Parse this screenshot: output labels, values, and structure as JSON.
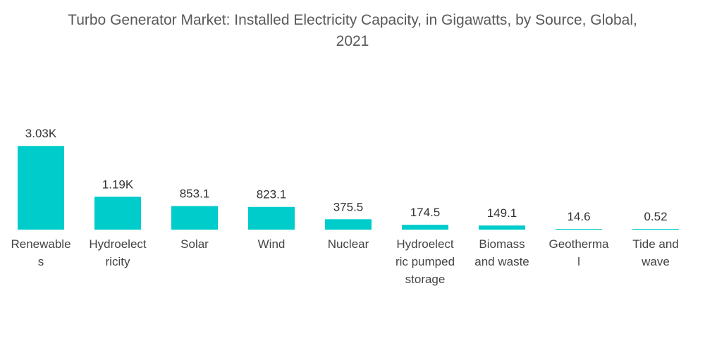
{
  "title": {
    "line1": "Turbo Generator Market: Installed Electricity Capacity, in Gigawatts, by Source, Global,",
    "line2": "2021"
  },
  "colors": {
    "bar": "#00cccc",
    "text": "#595959"
  },
  "chart_data": {
    "type": "bar",
    "title": "Turbo Generator Market: Installed Electricity Capacity, in Gigawatts, by Source, Global, 2021",
    "xlabel": "",
    "ylabel": "",
    "grid": false,
    "categories": [
      [
        "Renewable",
        "s"
      ],
      [
        "Hydroelect",
        "ricity"
      ],
      [
        "Solar"
      ],
      [
        "Wind"
      ],
      [
        "Nuclear"
      ],
      [
        "Hydroelect",
        "ric pumped",
        "storage"
      ],
      [
        "Biomass",
        "and waste"
      ],
      [
        "Geotherma",
        "l"
      ],
      [
        "Tide and",
        "wave"
      ]
    ],
    "values": [
      3030,
      1190,
      853.1,
      823.1,
      375.5,
      174.5,
      149.1,
      14.6,
      0.52
    ],
    "value_labels": [
      "3.03K",
      "1.19K",
      "853.1",
      "823.1",
      "375.5",
      "174.5",
      "149.1",
      "14.6",
      "0.52"
    ]
  }
}
